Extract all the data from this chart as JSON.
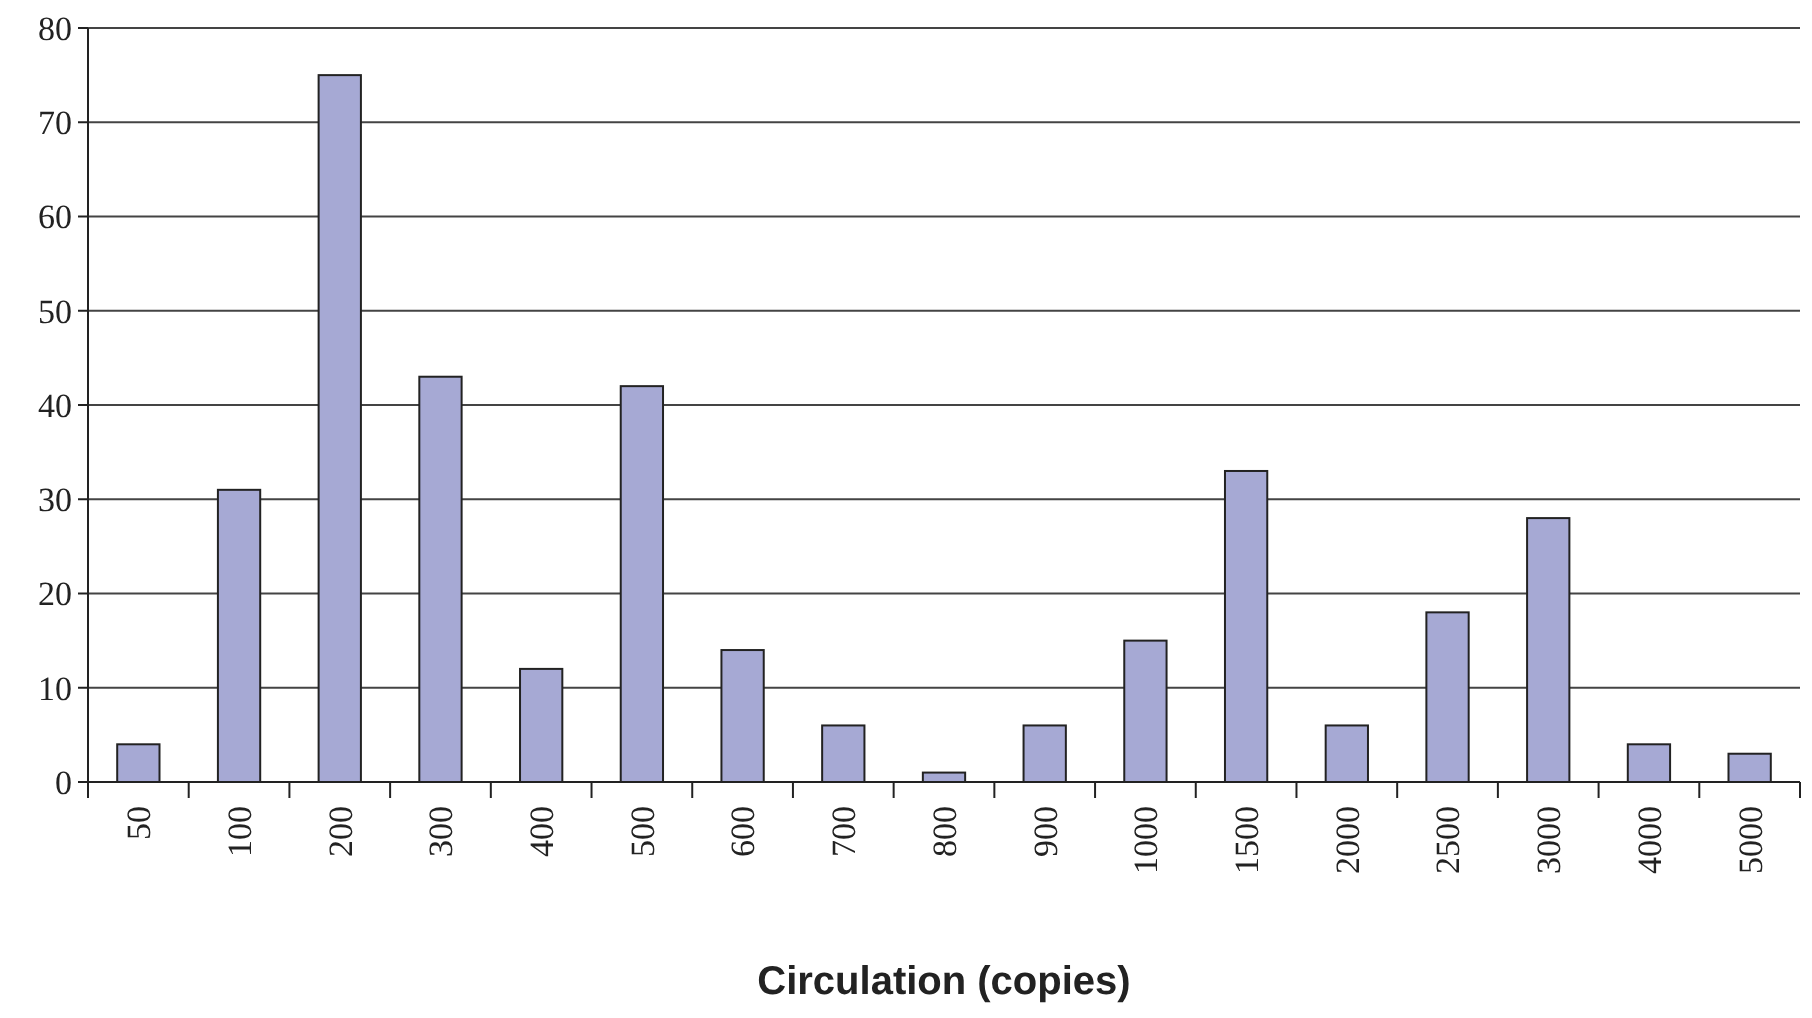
{
  "chart_data": {
    "type": "bar",
    "xlabel": "Circulation (copies)",
    "categories": [
      "50",
      "100",
      "200",
      "300",
      "400",
      "500",
      "600",
      "700",
      "800",
      "900",
      "1000",
      "1500",
      "2000",
      "2500",
      "3000",
      "4000",
      "5000"
    ],
    "values": [
      4,
      31,
      75,
      43,
      12,
      42,
      14,
      6,
      1,
      6,
      15,
      33,
      6,
      18,
      28,
      4,
      3
    ],
    "color": "#a6a9d4",
    "ylim": [
      0,
      80
    ],
    "yticks": [
      0,
      10,
      20,
      30,
      40,
      50,
      60,
      70,
      80
    ],
    "grid": "y"
  }
}
